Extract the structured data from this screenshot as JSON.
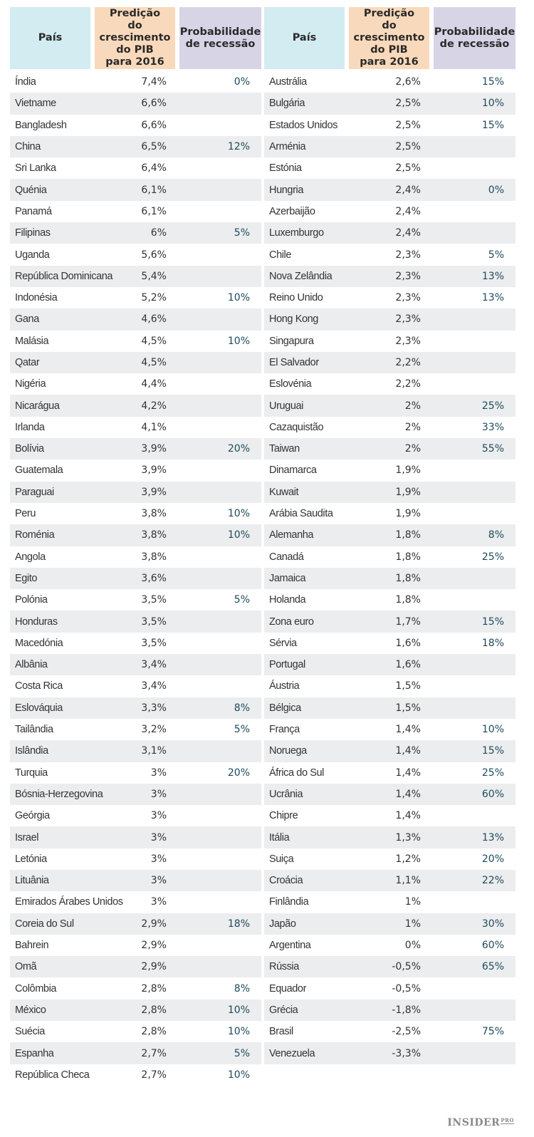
{
  "headers": {
    "country": "País",
    "gdp": "Predição\ndo crescimento\ndo PIB\npara 2016",
    "recession": "Probabilidade\nde recessão"
  },
  "left_rows": [
    {
      "country": "Índia",
      "gdp": "7,4%",
      "recession": "0%"
    },
    {
      "country": "Vietname",
      "gdp": "6,6%",
      "recession": ""
    },
    {
      "country": "Bangladesh",
      "gdp": "6,6%",
      "recession": ""
    },
    {
      "country": "China",
      "gdp": "6,5%",
      "recession": "12%"
    },
    {
      "country": "Sri Lanka",
      "gdp": "6,4%",
      "recession": ""
    },
    {
      "country": "Quénia",
      "gdp": "6,1%",
      "recession": ""
    },
    {
      "country": "Panamá",
      "gdp": "6,1%",
      "recession": ""
    },
    {
      "country": "Filipinas",
      "gdp": "6%",
      "recession": "5%"
    },
    {
      "country": "Uganda",
      "gdp": "5,6%",
      "recession": ""
    },
    {
      "country": "República Dominicana",
      "gdp": "5,4%",
      "recession": ""
    },
    {
      "country": "Indonésia",
      "gdp": "5,2%",
      "recession": "10%"
    },
    {
      "country": "Gana",
      "gdp": "4,6%",
      "recession": ""
    },
    {
      "country": "Malásia",
      "gdp": "4,5%",
      "recession": "10%"
    },
    {
      "country": "Qatar",
      "gdp": "4,5%",
      "recession": ""
    },
    {
      "country": "Nigéria",
      "gdp": "4,4%",
      "recession": ""
    },
    {
      "country": "Nicarágua",
      "gdp": "4,2%",
      "recession": ""
    },
    {
      "country": "Irlanda",
      "gdp": "4,1%",
      "recession": ""
    },
    {
      "country": "Bolívia",
      "gdp": "3,9%",
      "recession": "20%"
    },
    {
      "country": "Guatemala",
      "gdp": "3,9%",
      "recession": ""
    },
    {
      "country": "Paraguai",
      "gdp": "3,9%",
      "recession": ""
    },
    {
      "country": "Peru",
      "gdp": "3,8%",
      "recession": "10%"
    },
    {
      "country": "Roménia",
      "gdp": "3,8%",
      "recession": "10%"
    },
    {
      "country": "Angola",
      "gdp": "3,8%",
      "recession": ""
    },
    {
      "country": "Egito",
      "gdp": "3,6%",
      "recession": ""
    },
    {
      "country": "Polónia",
      "gdp": "3,5%",
      "recession": "5%"
    },
    {
      "country": "Honduras",
      "gdp": "3,5%",
      "recession": ""
    },
    {
      "country": "Macedónia",
      "gdp": "3,5%",
      "recession": ""
    },
    {
      "country": "Albânia",
      "gdp": "3,4%",
      "recession": ""
    },
    {
      "country": "Costa Rica",
      "gdp": "3,4%",
      "recession": ""
    },
    {
      "country": "Eslováquia",
      "gdp": "3,3%",
      "recession": "8%"
    },
    {
      "country": "Tailândia",
      "gdp": "3,2%",
      "recession": "5%"
    },
    {
      "country": "Islândia",
      "gdp": "3,1%",
      "recession": ""
    },
    {
      "country": "Turquia",
      "gdp": "3%",
      "recession": "20%"
    },
    {
      "country": "Bósnia-Herzegovina",
      "gdp": "3%",
      "recession": ""
    },
    {
      "country": "Geórgia",
      "gdp": "3%",
      "recession": ""
    },
    {
      "country": "Israel",
      "gdp": "3%",
      "recession": ""
    },
    {
      "country": "Letónia",
      "gdp": "3%",
      "recession": ""
    },
    {
      "country": "Lituânia",
      "gdp": "3%",
      "recession": ""
    },
    {
      "country": "Emirados Árabes Unidos",
      "gdp": "3%",
      "recession": ""
    },
    {
      "country": "Coreia do Sul",
      "gdp": "2,9%",
      "recession": "18%"
    },
    {
      "country": "Bahrein",
      "gdp": "2,9%",
      "recession": ""
    },
    {
      "country": "Omã",
      "gdp": "2,9%",
      "recession": ""
    },
    {
      "country": "Colômbia",
      "gdp": "2,8%",
      "recession": "8%"
    },
    {
      "country": "México",
      "gdp": "2,8%",
      "recession": "10%"
    },
    {
      "country": "Suécia",
      "gdp": "2,8%",
      "recession": "10%"
    },
    {
      "country": "Espanha",
      "gdp": "2,7%",
      "recession": "5%"
    },
    {
      "country": "República Checa",
      "gdp": "2,7%",
      "recession": "10%"
    }
  ],
  "right_rows": [
    {
      "country": "Austrália",
      "gdp": "2,6%",
      "recession": "15%"
    },
    {
      "country": "Bulgária",
      "gdp": "2,5%",
      "recession": "10%"
    },
    {
      "country": "Estados Unidos",
      "gdp": "2,5%",
      "recession": "15%"
    },
    {
      "country": "Arménia",
      "gdp": "2,5%",
      "recession": ""
    },
    {
      "country": "Estónia",
      "gdp": "2,5%",
      "recession": ""
    },
    {
      "country": "Hungria",
      "gdp": "2,4%",
      "recession": "0%"
    },
    {
      "country": "Azerbaijão",
      "gdp": "2,4%",
      "recession": ""
    },
    {
      "country": "Luxemburgo",
      "gdp": "2,4%",
      "recession": ""
    },
    {
      "country": "Chile",
      "gdp": "2,3%",
      "recession": "5%"
    },
    {
      "country": "Nova Zelândia",
      "gdp": "2,3%",
      "recession": "13%"
    },
    {
      "country": "Reino Unido",
      "gdp": "2,3%",
      "recession": "13%"
    },
    {
      "country": "Hong Kong",
      "gdp": "2,3%",
      "recession": ""
    },
    {
      "country": "Singapura",
      "gdp": "2,3%",
      "recession": ""
    },
    {
      "country": "El Salvador",
      "gdp": "2,2%",
      "recession": ""
    },
    {
      "country": "Eslovénia",
      "gdp": "2,2%",
      "recession": ""
    },
    {
      "country": "Uruguai",
      "gdp": "2%",
      "recession": "25%"
    },
    {
      "country": "Cazaquistão",
      "gdp": "2%",
      "recession": "33%"
    },
    {
      "country": "Taiwan",
      "gdp": "2%",
      "recession": "55%"
    },
    {
      "country": "Dinamarca",
      "gdp": "1,9%",
      "recession": ""
    },
    {
      "country": "Kuwait",
      "gdp": "1,9%",
      "recession": ""
    },
    {
      "country": "Arábia Saudita",
      "gdp": "1,9%",
      "recession": ""
    },
    {
      "country": "Alemanha",
      "gdp": "1,8%",
      "recession": "8%"
    },
    {
      "country": "Canadá",
      "gdp": "1,8%",
      "recession": "25%"
    },
    {
      "country": "Jamaica",
      "gdp": "1,8%",
      "recession": ""
    },
    {
      "country": "Holanda",
      "gdp": "1,8%",
      "recession": ""
    },
    {
      "country": "Zona euro",
      "gdp": "1,7%",
      "recession": "15%"
    },
    {
      "country": "Sérvia",
      "gdp": "1,6%",
      "recession": "18%"
    },
    {
      "country": "Portugal",
      "gdp": "1,6%",
      "recession": ""
    },
    {
      "country": "Áustria",
      "gdp": "1,5%",
      "recession": ""
    },
    {
      "country": "Bélgica",
      "gdp": "1,5%",
      "recession": ""
    },
    {
      "country": "França",
      "gdp": "1,4%",
      "recession": "10%"
    },
    {
      "country": "Noruega",
      "gdp": "1,4%",
      "recession": "15%"
    },
    {
      "country": "África do Sul",
      "gdp": "1,4%",
      "recession": "25%"
    },
    {
      "country": "Ucrânia",
      "gdp": "1,4%",
      "recession": "60%"
    },
    {
      "country": "Chipre",
      "gdp": "1,4%",
      "recession": ""
    },
    {
      "country": "Itália",
      "gdp": "1,3%",
      "recession": "13%"
    },
    {
      "country": "Suiça",
      "gdp": "1,2%",
      "recession": "20%"
    },
    {
      "country": "Croácia",
      "gdp": "1,1%",
      "recession": "22%"
    },
    {
      "country": "Finlândia",
      "gdp": "1%",
      "recession": ""
    },
    {
      "country": "Japão",
      "gdp": "1%",
      "recession": "30%"
    },
    {
      "country": "Argentina",
      "gdp": "0%",
      "recession": "60%"
    },
    {
      "country": "Rússia",
      "gdp": "-0,5%",
      "recession": "65%"
    },
    {
      "country": "Equador",
      "gdp": "-0,5%",
      "recession": ""
    },
    {
      "country": "Grécia",
      "gdp": "-1,8%",
      "recession": ""
    },
    {
      "country": "Brasil",
      "gdp": "-2,5%",
      "recession": "75%"
    },
    {
      "country": "Venezuela",
      "gdp": "-3,3%",
      "recession": ""
    }
  ],
  "logo": {
    "main": "INSIDER",
    "sub": "PRO"
  }
}
